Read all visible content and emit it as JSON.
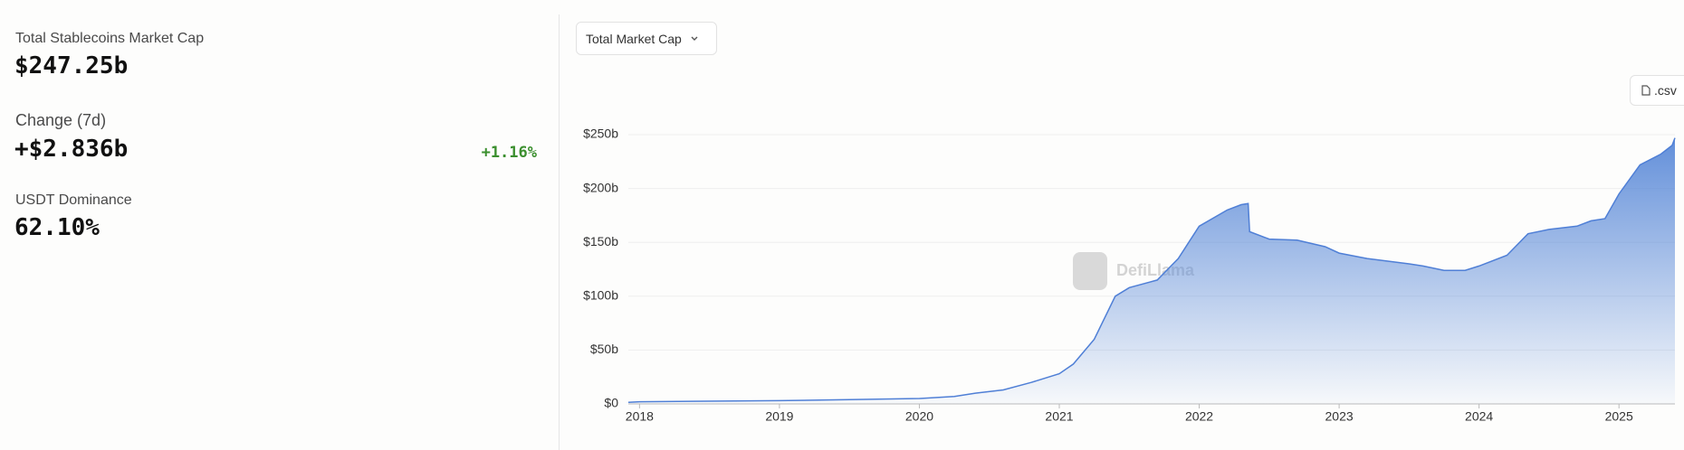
{
  "stats": {
    "market_cap_label": "Total Stablecoins Market Cap",
    "market_cap": "$247.25b",
    "change_label": "Change (7d)",
    "change": "+$2.836b",
    "change_pct": "+1.16%",
    "dominance_label": "USDT Dominance",
    "dominance": "62.10%"
  },
  "controls": {
    "dropdown": "Total Market Cap",
    "csv": ".csv"
  },
  "chart_data": {
    "type": "area",
    "watermark": "DefiLlama",
    "x": [
      2017.92,
      2018.0,
      2019.0,
      2019.5,
      2020.0,
      2020.25,
      2020.4,
      2020.6,
      2020.8,
      2021.0,
      2021.1,
      2021.25,
      2021.4,
      2021.5,
      2021.7,
      2021.85,
      2022.0,
      2022.2,
      2022.3,
      2022.35,
      2022.36,
      2022.5,
      2022.7,
      2022.9,
      2023.0,
      2023.2,
      2023.5,
      2023.6,
      2023.75,
      2023.9,
      2024.0,
      2024.2,
      2024.35,
      2024.5,
      2024.7,
      2024.8,
      2024.9,
      2025.0,
      2025.15,
      2025.3,
      2025.38,
      2025.4
    ],
    "series": [
      {
        "name": "Total Market Cap",
        "color": "#4f7fd6",
        "values": [
          1.5,
          2,
          3,
          4,
          5,
          7,
          10,
          13,
          20,
          28,
          37,
          60,
          100,
          108,
          115,
          135,
          165,
          180,
          185,
          186,
          160,
          153,
          152,
          146,
          140,
          135,
          130,
          128,
          124,
          124,
          128,
          138,
          158,
          162,
          165,
          170,
          172,
          195,
          222,
          232,
          240,
          247
        ]
      }
    ],
    "xlim": [
      2017.92,
      2025.4
    ],
    "xticks": [
      2018,
      2019,
      2020,
      2021,
      2022,
      2023,
      2024,
      2025
    ],
    "ylim": [
      0,
      250
    ],
    "yticks": [
      {
        "value": 0,
        "label": "$0"
      },
      {
        "value": 50,
        "label": "$50b"
      },
      {
        "value": 100,
        "label": "$100b"
      },
      {
        "value": 150,
        "label": "$150b"
      },
      {
        "value": 200,
        "label": "$200b"
      },
      {
        "value": 250,
        "label": "$250b"
      }
    ],
    "grid": true
  }
}
